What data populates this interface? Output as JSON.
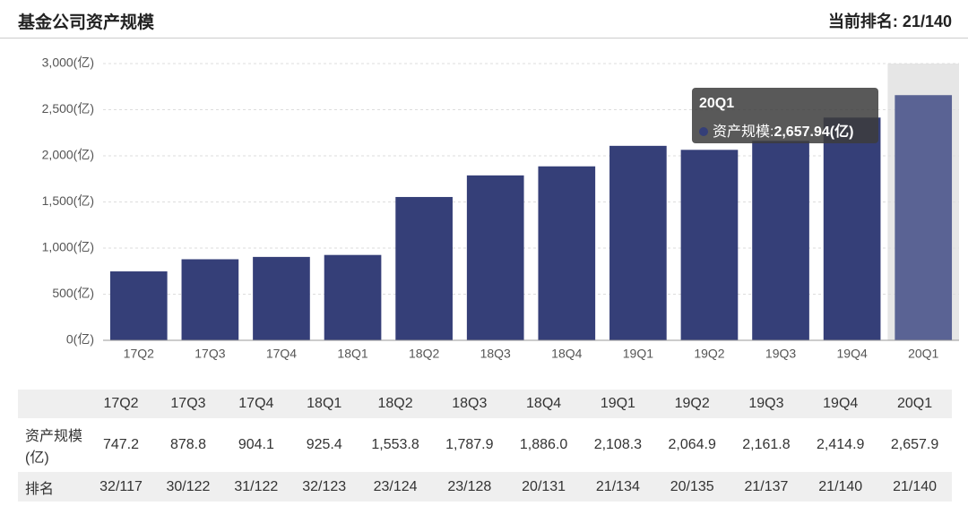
{
  "header": {
    "title": "基金公司资产规模",
    "rank": "当前排名: 21/140"
  },
  "chart_data": {
    "type": "bar",
    "categories": [
      "17Q2",
      "17Q3",
      "17Q4",
      "18Q1",
      "18Q2",
      "18Q3",
      "18Q4",
      "19Q1",
      "19Q2",
      "19Q3",
      "19Q4",
      "20Q1"
    ],
    "series": [
      {
        "name": "资产规模",
        "color": "#353f78",
        "values": [
          747.2,
          878.8,
          904.1,
          925.4,
          1553.8,
          1787.9,
          1886.0,
          2108.3,
          2064.9,
          2161.8,
          2414.9,
          2657.94
        ]
      }
    ],
    "ylim": [
      0,
      3000
    ],
    "yticks": [
      {
        "value": 0,
        "label": "0(亿)"
      },
      {
        "value": 500,
        "label": "500(亿)"
      },
      {
        "value": 1000,
        "label": "1,000(亿)"
      },
      {
        "value": 1500,
        "label": "1,500(亿)"
      },
      {
        "value": 2000,
        "label": "2,000(亿)"
      },
      {
        "value": 2500,
        "label": "2,500(亿)"
      },
      {
        "value": 3000,
        "label": "3,000(亿)"
      }
    ],
    "grid": true,
    "highlight_color": "#5a6394",
    "tooltip": {
      "title": "20Q1",
      "label": "资产规模:",
      "value": "2,657.94(亿)"
    }
  },
  "table": {
    "columns": [
      "17Q2",
      "17Q3",
      "17Q4",
      "18Q1",
      "18Q2",
      "18Q3",
      "18Q4",
      "19Q1",
      "19Q2",
      "19Q3",
      "19Q4",
      "20Q1"
    ],
    "rows": [
      {
        "label": "资产规模(亿)",
        "cells": [
          "747.2",
          "878.8",
          "904.1",
          "925.4",
          "1,553.8",
          "1,787.9",
          "1,886.0",
          "2,108.3",
          "2,064.9",
          "2,161.8",
          "2,414.9",
          "2,657.9"
        ]
      },
      {
        "label": "排名",
        "cells": [
          "32/117",
          "30/122",
          "31/122",
          "32/123",
          "23/124",
          "23/128",
          "20/131",
          "21/134",
          "20/135",
          "21/137",
          "21/140",
          "21/140"
        ]
      }
    ]
  }
}
